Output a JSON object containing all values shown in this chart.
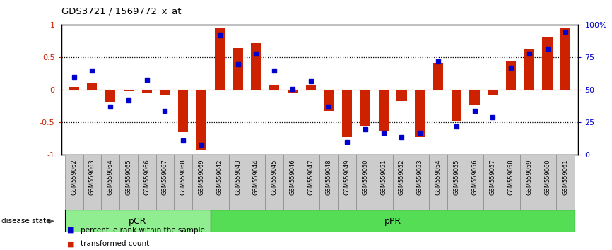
{
  "title": "GDS3721 / 1569772_x_at",
  "samples": [
    "GSM559062",
    "GSM559063",
    "GSM559064",
    "GSM559065",
    "GSM559066",
    "GSM559067",
    "GSM559068",
    "GSM559069",
    "GSM559042",
    "GSM559043",
    "GSM559044",
    "GSM559045",
    "GSM559046",
    "GSM559047",
    "GSM559048",
    "GSM559049",
    "GSM559050",
    "GSM559051",
    "GSM559052",
    "GSM559053",
    "GSM559054",
    "GSM559055",
    "GSM559056",
    "GSM559057",
    "GSM559058",
    "GSM559059",
    "GSM559060",
    "GSM559061"
  ],
  "transformed_count": [
    0.05,
    0.1,
    -0.18,
    -0.02,
    -0.04,
    -0.08,
    -0.65,
    -0.93,
    0.95,
    0.65,
    0.72,
    0.08,
    -0.04,
    0.08,
    -0.32,
    -0.72,
    -0.55,
    -0.62,
    -0.17,
    -0.72,
    0.42,
    -0.48,
    -0.22,
    -0.08,
    0.45,
    0.62,
    0.82,
    0.95
  ],
  "percentile_rank": [
    60,
    65,
    37,
    42,
    58,
    34,
    11,
    8,
    92,
    70,
    78,
    65,
    51,
    57,
    37,
    10,
    20,
    17,
    14,
    17,
    72,
    22,
    34,
    29,
    67,
    78,
    82,
    95
  ],
  "groups": [
    {
      "label": "pCR",
      "start": 0,
      "end": 8,
      "color": "#90EE90"
    },
    {
      "label": "pPR",
      "start": 8,
      "end": 28,
      "color": "#55DD55"
    }
  ],
  "bar_color": "#CC2200",
  "dot_color": "#0000CC",
  "hline_color": "#CC2200",
  "tick_bg_color": "#cccccc",
  "tick_border_color": "#888888",
  "ylim_left": [
    -1,
    1
  ],
  "ylim_right": [
    0,
    100
  ],
  "yticks_left": [
    -1,
    -0.5,
    0,
    0.5,
    1
  ],
  "ytick_labels_left": [
    "-1",
    "-0.5",
    "0",
    "0.5",
    "1"
  ],
  "yticks_right": [
    0,
    25,
    50,
    75,
    100
  ],
  "ytick_labels_right": [
    "0",
    "25",
    "50",
    "75",
    "100%"
  ],
  "disease_state_label": "disease state",
  "legend": [
    {
      "color": "#CC2200",
      "label": "transformed count"
    },
    {
      "color": "#0000CC",
      "label": "percentile rank within the sample"
    }
  ]
}
